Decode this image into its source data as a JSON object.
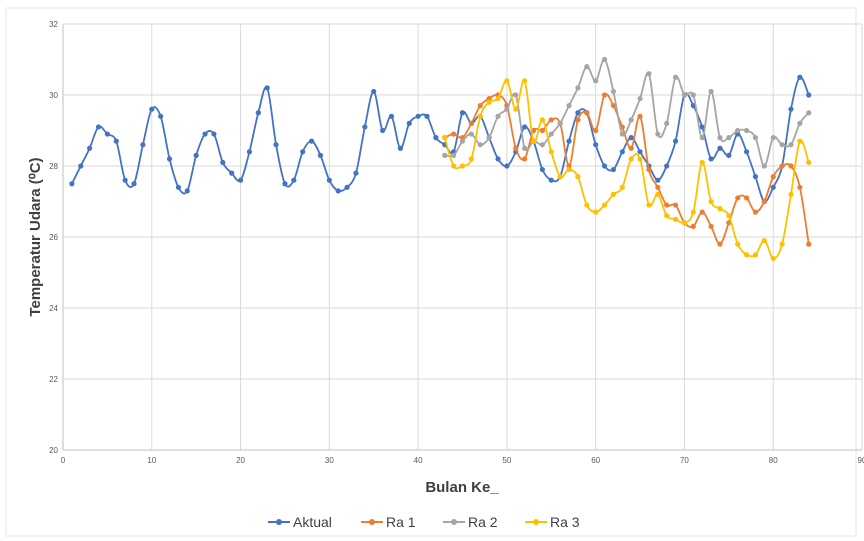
{
  "chart_data": {
    "type": "line",
    "title": "",
    "xlabel": "Bulan Ke_",
    "ylabel": "Temperatur Udara (⁰C)",
    "xlim": [
      0,
      90
    ],
    "ylim": [
      20,
      32
    ],
    "x_ticks": [
      0,
      10,
      20,
      30,
      40,
      50,
      60,
      70,
      80,
      90
    ],
    "y_ticks": [
      20,
      22,
      24,
      26,
      28,
      30,
      32
    ],
    "grid": true,
    "legend_position": "bottom",
    "series": [
      {
        "name": "Aktual",
        "color": "#4472C4",
        "x": [
          1,
          2,
          3,
          4,
          5,
          6,
          7,
          8,
          9,
          10,
          11,
          12,
          13,
          14,
          15,
          16,
          17,
          18,
          19,
          20,
          21,
          22,
          23,
          24,
          25,
          26,
          27,
          28,
          29,
          30,
          31,
          32,
          33,
          34,
          35,
          36,
          37,
          38,
          39,
          40,
          41,
          42,
          43,
          44,
          45,
          46,
          47,
          48,
          49,
          50,
          51,
          52,
          53,
          54,
          55,
          56,
          57,
          58,
          59,
          60,
          61,
          62,
          63,
          64,
          65,
          66,
          67,
          68,
          69,
          70,
          71,
          72,
          73,
          74,
          75,
          76,
          77,
          78,
          79,
          80,
          81,
          82,
          83,
          84
        ],
        "y": [
          27.5,
          28.0,
          28.5,
          29.1,
          28.9,
          28.7,
          27.6,
          27.5,
          28.6,
          29.6,
          29.4,
          28.2,
          27.4,
          27.3,
          28.3,
          28.9,
          28.9,
          28.1,
          27.8,
          27.6,
          28.4,
          29.5,
          30.2,
          28.6,
          27.5,
          27.6,
          28.4,
          28.7,
          28.3,
          27.6,
          27.3,
          27.4,
          27.8,
          29.1,
          30.1,
          29.0,
          29.4,
          28.5,
          29.2,
          29.4,
          29.4,
          28.8,
          28.6,
          28.4,
          29.5,
          29.2,
          29.4,
          28.8,
          28.2,
          28.0,
          28.4,
          29.1,
          28.7,
          27.9,
          27.6,
          27.7,
          28.7,
          29.5,
          29.5,
          28.6,
          28.0,
          27.9,
          28.4,
          28.8,
          28.4,
          28.0,
          27.6,
          28.0,
          28.7,
          30.0,
          29.7,
          29.1,
          28.2,
          28.5,
          28.3,
          28.9,
          28.4,
          27.7,
          27.0,
          27.4,
          28.0,
          29.6,
          30.5,
          30.0
        ]
      },
      {
        "name": "Ra 1",
        "color": "#ED7D31",
        "x": [
          43,
          44,
          45,
          46,
          47,
          48,
          49,
          50,
          51,
          52,
          53,
          54,
          55,
          56,
          57,
          58,
          59,
          60,
          61,
          62,
          63,
          64,
          65,
          66,
          67,
          68,
          69,
          70,
          71,
          72,
          73,
          74,
          75,
          76,
          77,
          78,
          79,
          80,
          81,
          82,
          83,
          84
        ],
        "y": [
          28.8,
          28.9,
          28.8,
          29.2,
          29.7,
          29.9,
          30.0,
          29.7,
          28.5,
          28.2,
          29.0,
          29.0,
          29.3,
          29.2,
          28.0,
          29.3,
          29.5,
          29.0,
          30.0,
          29.7,
          29.1,
          28.5,
          29.4,
          27.9,
          27.4,
          26.9,
          26.9,
          26.4,
          26.3,
          26.7,
          26.3,
          25.8,
          26.4,
          27.1,
          27.1,
          26.7,
          27.0,
          27.7,
          28.0,
          28.0,
          27.4,
          25.8
        ]
      },
      {
        "name": "Ra 2",
        "color": "#A5A5A5",
        "x": [
          43,
          44,
          45,
          46,
          47,
          48,
          49,
          50,
          51,
          52,
          53,
          54,
          55,
          56,
          57,
          58,
          59,
          60,
          61,
          62,
          63,
          64,
          65,
          66,
          67,
          68,
          69,
          70,
          71,
          72,
          73,
          74,
          75,
          76,
          77,
          78,
          79,
          80,
          81,
          82,
          83,
          84
        ],
        "y": [
          28.3,
          28.3,
          28.7,
          28.9,
          28.6,
          28.8,
          29.4,
          29.6,
          30.0,
          28.5,
          28.7,
          28.6,
          28.9,
          29.2,
          29.7,
          30.2,
          30.8,
          30.4,
          31.0,
          30.1,
          28.9,
          29.3,
          29.9,
          30.6,
          28.9,
          29.2,
          30.5,
          30.0,
          30.0,
          28.8,
          30.1,
          28.8,
          28.8,
          29.0,
          29.0,
          28.8,
          28.0,
          28.8,
          28.6,
          28.6,
          29.2,
          29.5
        ]
      },
      {
        "name": "Ra 3",
        "color": "#FFC000",
        "x": [
          43,
          44,
          45,
          46,
          47,
          48,
          49,
          50,
          51,
          52,
          53,
          54,
          55,
          56,
          57,
          58,
          59,
          60,
          61,
          62,
          63,
          64,
          65,
          66,
          67,
          68,
          69,
          70,
          71,
          72,
          73,
          74,
          75,
          76,
          77,
          78,
          79,
          80,
          81,
          82,
          83,
          84
        ],
        "y": [
          28.8,
          28.0,
          28.0,
          28.2,
          29.4,
          29.8,
          29.9,
          30.4,
          29.6,
          30.4,
          28.7,
          29.3,
          28.4,
          27.7,
          27.9,
          27.7,
          26.9,
          26.7,
          26.9,
          27.2,
          27.4,
          28.2,
          28.2,
          26.9,
          27.2,
          26.6,
          26.5,
          26.4,
          26.7,
          28.1,
          27.0,
          26.8,
          26.6,
          25.8,
          25.5,
          25.5,
          25.9,
          25.4,
          25.8,
          27.2,
          28.7,
          28.1
        ]
      }
    ]
  }
}
